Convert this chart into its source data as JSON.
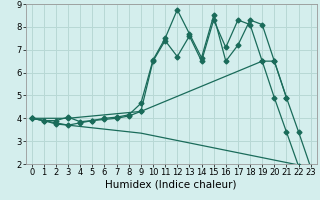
{
  "xlabel": "Humidex (Indice chaleur)",
  "bg_color": "#d4eeed",
  "grid_color": "#b8d8d5",
  "line_color": "#1a6b5a",
  "xlim": [
    -0.5,
    23.5
  ],
  "ylim": [
    2,
    9
  ],
  "xticks": [
    0,
    1,
    2,
    3,
    4,
    5,
    6,
    7,
    8,
    9,
    10,
    11,
    12,
    13,
    14,
    15,
    16,
    17,
    18,
    19,
    20,
    21,
    22,
    23
  ],
  "yticks": [
    2,
    3,
    4,
    5,
    6,
    7,
    8,
    9
  ],
  "line1_x": [
    0,
    1,
    2,
    3,
    4,
    5,
    6,
    7,
    8,
    9,
    10,
    11,
    12,
    13,
    14,
    15,
    16,
    17,
    18,
    19,
    20,
    21
  ],
  "line1_y": [
    4.0,
    3.9,
    3.9,
    4.05,
    3.85,
    3.9,
    4.0,
    4.05,
    4.15,
    4.65,
    6.55,
    7.5,
    8.75,
    7.7,
    6.65,
    8.5,
    6.5,
    7.2,
    8.3,
    8.1,
    6.5,
    4.9
  ],
  "line2_x": [
    0,
    1,
    2,
    3,
    4,
    5,
    6,
    7,
    8,
    9,
    10,
    11,
    12,
    13,
    14,
    15,
    16,
    17,
    18,
    19,
    20,
    21,
    22,
    23
  ],
  "line2_y": [
    4.0,
    3.9,
    3.75,
    3.7,
    3.8,
    3.9,
    3.95,
    4.0,
    4.1,
    4.3,
    6.5,
    7.4,
    6.7,
    7.6,
    6.5,
    8.3,
    7.1,
    8.3,
    8.1,
    6.5,
    4.9,
    3.4,
    1.9,
    null
  ],
  "line3_x": [
    0,
    3,
    9,
    19,
    20,
    21,
    22,
    23
  ],
  "line3_y": [
    4.0,
    4.0,
    4.3,
    6.5,
    6.5,
    4.9,
    3.4,
    1.85
  ],
  "line4_x": [
    0,
    3,
    9,
    23
  ],
  "line4_y": [
    4.0,
    3.7,
    3.35,
    1.85
  ],
  "markersize": 2.5,
  "linewidth": 0.9,
  "xlabel_fontsize": 7.5,
  "tick_fontsize": 6.0
}
